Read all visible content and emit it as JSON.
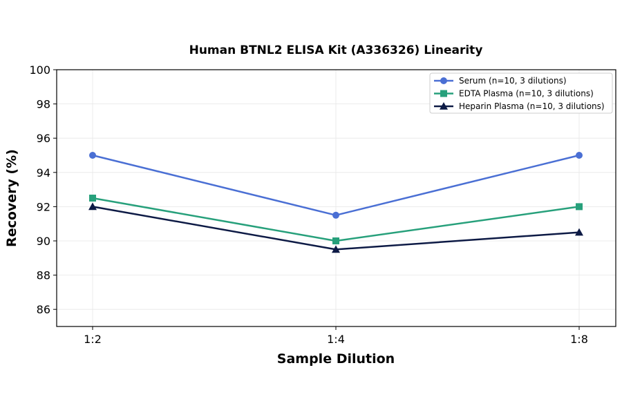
{
  "chart_data": {
    "type": "line",
    "title": "Human BTNL2 ELISA Kit (A336326) Linearity",
    "xlabel": "Sample Dilution",
    "ylabel": "Recovery (%)",
    "categories": [
      "1:2",
      "1:4",
      "1:8"
    ],
    "ylim": [
      85,
      100
    ],
    "yticks": [
      86,
      88,
      90,
      92,
      94,
      96,
      98,
      100
    ],
    "grid": true,
    "legend_position": "top-right",
    "series": [
      {
        "name": "Serum (n=10, 3 dilutions)",
        "values": [
          95,
          91.5,
          95
        ],
        "color": "#4a6fd4",
        "marker": "circle"
      },
      {
        "name": "EDTA Plasma (n=10, 3 dilutions)",
        "values": [
          92.5,
          90,
          92
        ],
        "color": "#27a07b",
        "marker": "square"
      },
      {
        "name": "Heparin Plasma (n=10, 3 dilutions)",
        "values": [
          92,
          89.5,
          90.5
        ],
        "color": "#0d1a45",
        "marker": "triangle"
      }
    ]
  }
}
